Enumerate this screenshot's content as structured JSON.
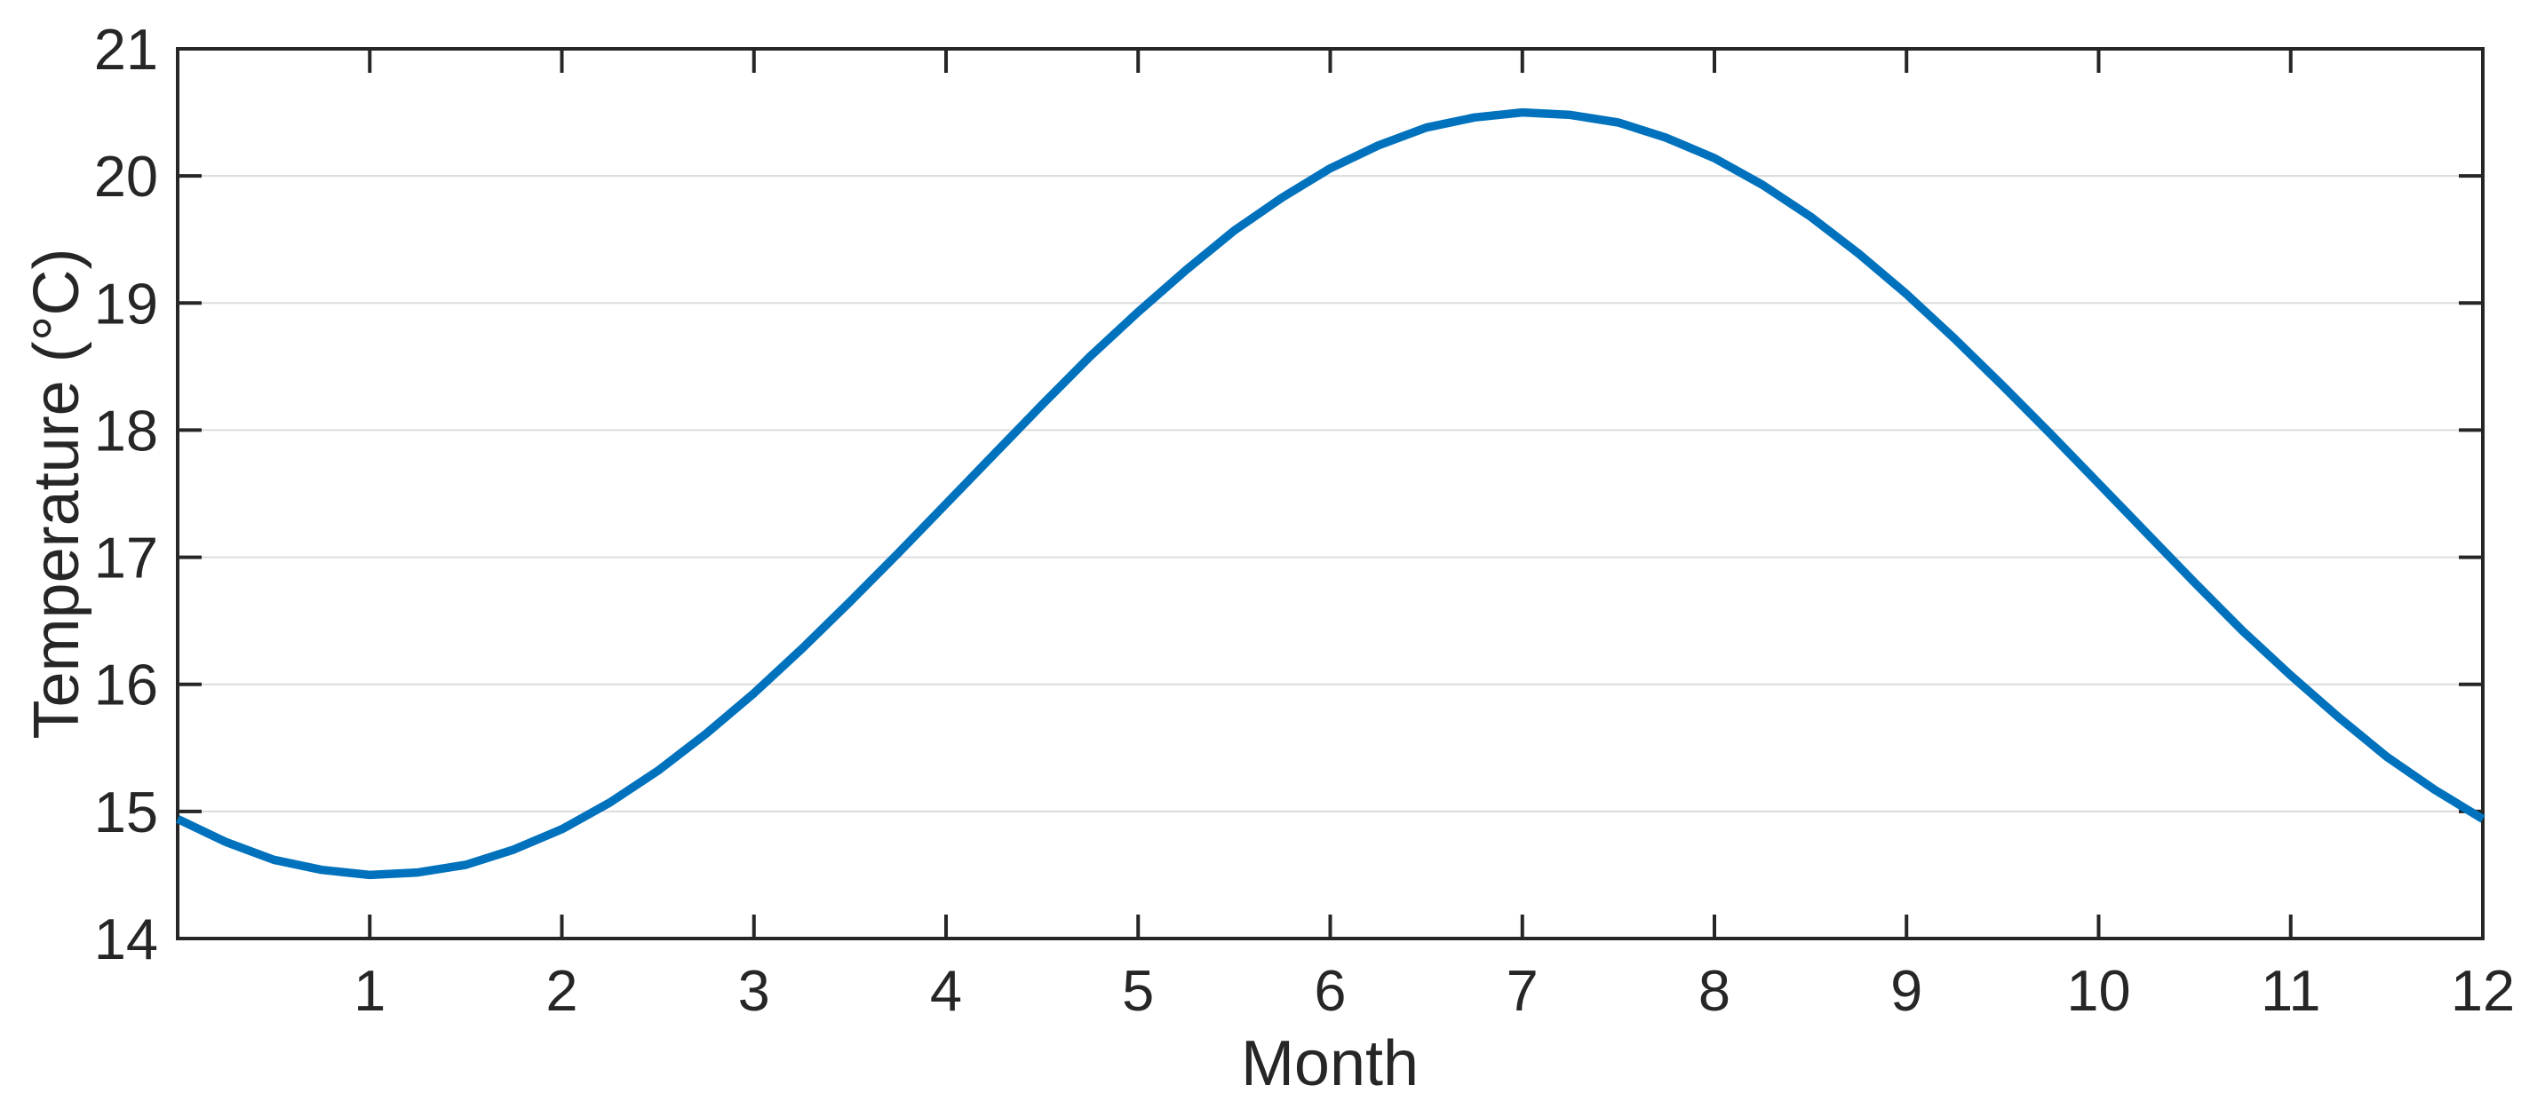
{
  "figure": {
    "background": "#ffffff"
  },
  "chart_data": {
    "type": "line",
    "title": "",
    "xlabel": "Month",
    "ylabel": "Temperature (°C)",
    "xlim": [
      0,
      12
    ],
    "ylim": [
      14,
      21
    ],
    "x_ticks": [
      1,
      2,
      3,
      4,
      5,
      6,
      7,
      8,
      9,
      10,
      11,
      12
    ],
    "y_ticks": [
      14,
      15,
      16,
      17,
      18,
      19,
      20,
      21
    ],
    "grid": "horizontal-only",
    "legend": "none",
    "series": [
      {
        "name": "temperature",
        "color": "#0072BD",
        "x": [
          0,
          0.25,
          0.5,
          0.75,
          1,
          1.25,
          1.5,
          1.75,
          2,
          2.25,
          2.5,
          2.75,
          3,
          3.25,
          3.5,
          3.75,
          4,
          4.25,
          4.5,
          4.75,
          5,
          5.25,
          5.5,
          5.75,
          6,
          6.25,
          6.5,
          6.75,
          7,
          7.25,
          7.5,
          7.75,
          8,
          8.25,
          8.5,
          8.75,
          9,
          9.25,
          9.5,
          9.75,
          10,
          10.25,
          10.5,
          10.75,
          11,
          11.25,
          11.5,
          11.75,
          12
        ],
        "y": [
          14.94,
          14.76,
          14.62,
          14.54,
          14.5,
          14.52,
          14.58,
          14.7,
          14.86,
          15.07,
          15.32,
          15.61,
          15.93,
          16.28,
          16.65,
          17.03,
          17.42,
          17.81,
          18.2,
          18.58,
          18.93,
          19.26,
          19.57,
          19.83,
          20.06,
          20.24,
          20.38,
          20.46,
          20.5,
          20.48,
          20.42,
          20.3,
          20.14,
          19.93,
          19.68,
          19.39,
          19.07,
          18.72,
          18.35,
          17.97,
          17.58,
          17.19,
          16.8,
          16.42,
          16.07,
          15.74,
          15.43,
          15.17,
          14.94
        ],
        "y_min": 14.5,
        "y_min_at_x": 1.05,
        "y_max": 20.5,
        "y_max_at_x": 7.05
      }
    ],
    "style": {
      "axis_color": "#262626",
      "tick_label_color": "#262626",
      "axis_label_color": "#262626",
      "grid_color": "#dcdcdc",
      "plot_background": "#ffffff"
    }
  }
}
